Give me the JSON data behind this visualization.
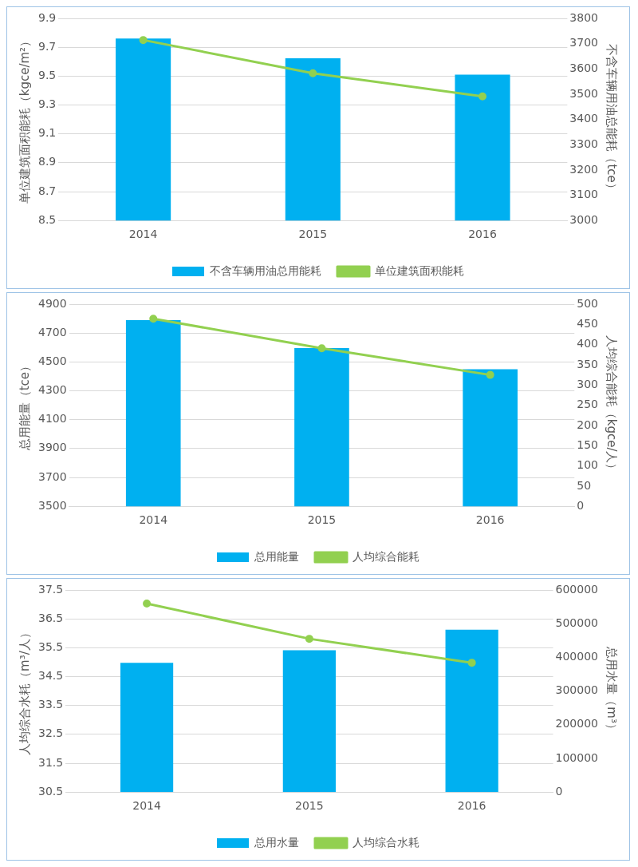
{
  "chart_data": [
    {
      "type": "bar",
      "categories": [
        "2014",
        "2015",
        "2016"
      ],
      "ylabel": "单位建筑面积能耗（kgce/m²）",
      "y2label": "不含车辆用油总能耗（tce）",
      "ylim": [
        8.5,
        9.9
      ],
      "yticks": [
        8.5,
        8.7,
        8.9,
        9.1,
        9.3,
        9.5,
        9.7,
        9.9
      ],
      "y2lim": [
        3000,
        3800
      ],
      "y2ticks": [
        3000,
        3100,
        3200,
        3300,
        3400,
        3500,
        3600,
        3700,
        3800
      ],
      "grid": "y",
      "legend": "bottom",
      "marker": "circle",
      "series": [
        {
          "name": "不含车辆用油总用能耗",
          "axis": "y2",
          "color": "#00b0f0",
          "values": [
            3720,
            3642,
            3577
          ]
        },
        {
          "name": "单位建筑面积能耗",
          "type": "line",
          "axis": "y",
          "color": "#92d050",
          "values": [
            9.75,
            9.52,
            9.36
          ]
        }
      ]
    },
    {
      "type": "bar",
      "categories": [
        "2014",
        "2015",
        "2016"
      ],
      "ylabel": "总用能量（tce）",
      "y2label": "人均综合能耗（kgce/人）",
      "ylim": [
        3500,
        4900
      ],
      "yticks": [
        3500,
        3700,
        3900,
        4100,
        4300,
        4500,
        4700,
        4900
      ],
      "y2lim": [
        0,
        500
      ],
      "y2ticks": [
        0,
        50,
        100,
        150,
        200,
        250,
        300,
        350,
        400,
        450,
        500
      ],
      "grid": "y",
      "legend": "bottom",
      "marker": "circle",
      "series": [
        {
          "name": "总用能量",
          "axis": "y",
          "color": "#00b0f0",
          "values": [
            4790,
            4596,
            4450
          ]
        },
        {
          "name": "人均综合能耗",
          "type": "line",
          "axis": "y2",
          "color": "#92d050",
          "values": [
            464,
            391,
            325
          ]
        }
      ]
    },
    {
      "type": "bar",
      "categories": [
        "2014",
        "2015",
        "2016"
      ],
      "ylabel": "人均综合水耗（m³/人）",
      "y2label": "总用水量（m³）",
      "ylim": [
        30.5,
        37.5
      ],
      "yticks": [
        30.5,
        31.5,
        32.5,
        33.5,
        34.5,
        35.5,
        36.5,
        37.5
      ],
      "y2lim": [
        0,
        600000
      ],
      "y2ticks": [
        0,
        100000,
        200000,
        300000,
        400000,
        500000,
        600000
      ],
      "grid": "y",
      "legend": "bottom",
      "marker": "circle",
      "series": [
        {
          "name": "总用水量",
          "axis": "y2",
          "color": "#00b0f0",
          "values": [
            384000,
            421000,
            482000
          ]
        },
        {
          "name": "人均综合水耗",
          "type": "line",
          "axis": "y",
          "color": "#92d050",
          "values": [
            37.03,
            35.81,
            34.98
          ]
        }
      ]
    }
  ]
}
